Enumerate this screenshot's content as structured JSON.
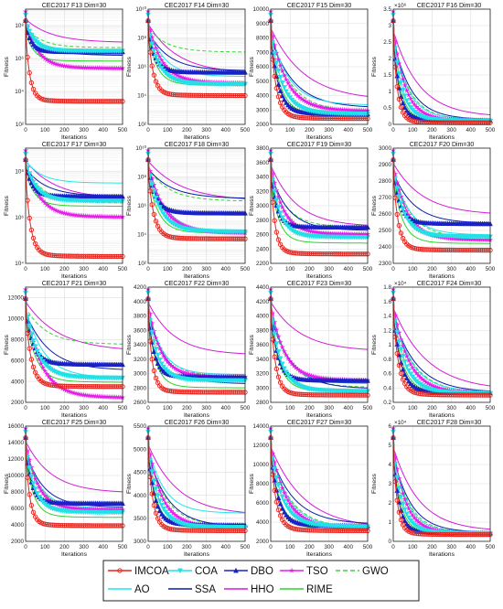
{
  "figure": {
    "ylabel_common": "Fitness",
    "xlabel_common": "Iterations",
    "x_ticks": [
      0,
      100,
      200,
      300,
      400,
      500
    ],
    "legend_position": "bottom"
  },
  "series_styles": [
    {
      "name": "IMCOA",
      "color": "#e8221c",
      "line": "solid",
      "marker": "circle"
    },
    {
      "name": "COA",
      "color": "#22e0e6",
      "line": "solid",
      "marker": "triangle-down"
    },
    {
      "name": "DBO",
      "color": "#1b22c4",
      "line": "solid",
      "marker": "triangle-up"
    },
    {
      "name": "TSO",
      "color": "#e61de8",
      "line": "solid",
      "marker": "star"
    },
    {
      "name": "GWO",
      "color": "#3ad43a",
      "line": "dashed",
      "marker": "none"
    },
    {
      "name": "AO",
      "color": "#22e6ea",
      "line": "solid",
      "marker": "none"
    },
    {
      "name": "SSA",
      "color": "#0a1fa6",
      "line": "solid",
      "marker": "none"
    },
    {
      "name": "HHO",
      "color": "#d21dd8",
      "line": "solid",
      "marker": "none"
    },
    {
      "name": "RIME",
      "color": "#2ad42a",
      "line": "solid",
      "marker": "none"
    }
  ],
  "chart_data": [
    {
      "type": "line",
      "title": "CEC2017 F13 Dim=30",
      "xlabel": "Iterations",
      "ylabel": "Fitness",
      "xlim": [
        0,
        500
      ],
      "yscale": "log",
      "ylim": [
        100,
        1000000000.0
      ],
      "yticks": [
        {
          "v": 100,
          "t": "10²"
        },
        {
          "v": 10000,
          "t": "10⁴"
        },
        {
          "v": 1000000,
          "t": "10⁶"
        },
        {
          "v": 100000000,
          "t": "10⁸"
        }
      ],
      "final": {
        "IMCOA": 2500,
        "COA": 2800000,
        "DBO": 2500000,
        "TSO": 250000,
        "GWO": 4500000,
        "AO": 1800000,
        "SSA": 1500000,
        "HHO": 9000000,
        "RIME": 700000
      }
    },
    {
      "type": "line",
      "title": "CEC2017 F14 Dim=30",
      "xlabel": "Iterations",
      "ylabel": "Fitness",
      "xlim": [
        0,
        500
      ],
      "yscale": "log",
      "ylim": [
        100,
        10000000000.0
      ],
      "yticks": [
        {
          "v": 100,
          "t": "10²"
        },
        {
          "v": 10000,
          "t": "10⁴"
        },
        {
          "v": 1000000,
          "t": "10⁶"
        },
        {
          "v": 100000000,
          "t": "10⁸"
        },
        {
          "v": 10000000000,
          "t": "10¹⁰"
        }
      ],
      "final": {
        "IMCOA": 10000,
        "COA": 60000,
        "DBO": 400000,
        "TSO": 70000,
        "GWO": 10000000,
        "AO": 200000,
        "SSA": 500000,
        "HHO": 300000,
        "RIME": 50000
      }
    },
    {
      "type": "line",
      "title": "CEC2017 F15 Dim=30",
      "xlabel": "Iterations",
      "ylabel": "Fitness",
      "xlim": [
        0,
        500
      ],
      "yscale": "linear",
      "ylim": [
        2000,
        10000
      ],
      "yticks": [
        2000,
        3000,
        4000,
        5000,
        6000,
        7000,
        8000,
        9000,
        10000
      ],
      "final": {
        "IMCOA": 2400,
        "COA": 2700,
        "DBO": 2700,
        "TSO": 2900,
        "GWO": 2800,
        "AO": 3300,
        "SSA": 3100,
        "HHO": 3600,
        "RIME": 2600
      }
    },
    {
      "type": "line",
      "title": "CEC2017 F16 Dim=30",
      "xlabel": "Iterations",
      "ylabel": "Fitness",
      "xlim": [
        0,
        500
      ],
      "yscale": "linear",
      "ylim": [
        0,
        3.5
      ],
      "exponent": "×10⁶",
      "yticks": [
        0,
        0.5,
        1,
        1.5,
        2,
        2.5,
        3,
        3.5
      ],
      "final": {
        "IMCOA": 0.05,
        "COA": 0.1,
        "DBO": 0.12,
        "TSO": 0.1,
        "GWO": 0.12,
        "AO": 0.15,
        "SSA": 0.13,
        "HHO": 0.2,
        "RIME": 0.08
      }
    },
    {
      "type": "line",
      "title": "CEC2017 F17 Dim=30",
      "xlabel": "Iterations",
      "ylabel": "Fitness",
      "xlim": [
        0,
        500
      ],
      "yscale": "log",
      "ylim": [
        10000,
        1000000000.0
      ],
      "yticks": [
        {
          "v": 10000,
          "t": "10⁴"
        },
        {
          "v": 1000000,
          "t": "10⁶"
        },
        {
          "v": 100000000,
          "t": "10⁸"
        }
      ],
      "final": {
        "IMCOA": 20000,
        "COA": 5000000,
        "DBO": 8000000,
        "TSO": 1000000,
        "GWO": 4000000,
        "AO": 30000000,
        "SSA": 8000000,
        "HHO": 6000000,
        "RIME": 3000000
      }
    },
    {
      "type": "line",
      "title": "CEC2017 F18 Dim=30",
      "xlabel": "Iterations",
      "ylabel": "Fitness",
      "xlim": [
        0,
        500
      ],
      "yscale": "log",
      "ylim": [
        100,
        10000000000.0
      ],
      "yticks": [
        {
          "v": 100,
          "t": "10²"
        },
        {
          "v": 10000,
          "t": "10⁴"
        },
        {
          "v": 1000000,
          "t": "10⁶"
        },
        {
          "v": 100000000,
          "t": "10⁸"
        },
        {
          "v": 10000000000,
          "t": "10¹⁰"
        }
      ],
      "final": {
        "IMCOA": 5000,
        "COA": 15000,
        "DBO": 300000,
        "TSO": 12000,
        "GWO": 2000000,
        "AO": 12000,
        "SSA": 3000000,
        "HHO": 2000000,
        "RIME": 12000
      }
    },
    {
      "type": "line",
      "title": "CEC2017 F19 Dim=30",
      "xlabel": "Iterations",
      "ylabel": "Fitness",
      "xlim": [
        0,
        500
      ],
      "yscale": "linear",
      "ylim": [
        2200,
        3800
      ],
      "yticks": [
        2200,
        2400,
        2600,
        2800,
        3000,
        3200,
        3400,
        3600,
        3800
      ],
      "final": {
        "IMCOA": 2330,
        "COA": 2560,
        "DBO": 2700,
        "TSO": 2600,
        "GWO": 2700,
        "AO": 2580,
        "SSA": 2650,
        "HHO": 2700,
        "RIME": 2480
      }
    },
    {
      "type": "line",
      "title": "CEC2017 F20 Dim=30",
      "xlabel": "Iterations",
      "ylabel": "Fitness",
      "xlim": [
        0,
        500
      ],
      "yscale": "linear",
      "ylim": [
        2300,
        3000
      ],
      "yticks": [
        2300,
        2400,
        2500,
        2600,
        2700,
        2800,
        2900,
        3000
      ],
      "final": {
        "IMCOA": 2380,
        "COA": 2460,
        "DBO": 2540,
        "TSO": 2440,
        "GWO": 2450,
        "AO": 2470,
        "SSA": 2540,
        "HHO": 2590,
        "RIME": 2420
      }
    },
    {
      "type": "line",
      "title": "CEC2017 F21 Dim=30",
      "xlabel": "Iterations",
      "ylabel": "Fitness",
      "xlim": [
        0,
        500
      ],
      "yscale": "linear",
      "ylim": [
        2000,
        13000
      ],
      "yticks": [
        2000,
        4000,
        6000,
        8000,
        10000,
        12000
      ],
      "final": {
        "IMCOA": 3500,
        "COA": 4300,
        "DBO": 5600,
        "TSO": 2400,
        "GWO": 7500,
        "AO": 4300,
        "SSA": 5000,
        "HHO": 6800,
        "RIME": 3900
      }
    },
    {
      "type": "line",
      "title": "CEC2017 F22 Dim=30",
      "xlabel": "Iterations",
      "ylabel": "Fitness",
      "xlim": [
        0,
        500
      ],
      "yscale": "linear",
      "ylim": [
        2600,
        4200
      ],
      "yticks": [
        2600,
        2800,
        3000,
        3200,
        3400,
        3600,
        3800,
        4000,
        4200
      ],
      "final": {
        "IMCOA": 2740,
        "COA": 2900,
        "DBO": 2950,
        "TSO": 2950,
        "GWO": 2950,
        "AO": 2980,
        "SSA": 2850,
        "HHO": 3250,
        "RIME": 2800
      }
    },
    {
      "type": "line",
      "title": "CEC2017 F23 Dim=30",
      "xlabel": "Iterations",
      "ylabel": "Fitness",
      "xlim": [
        0,
        500
      ],
      "yscale": "linear",
      "ylim": [
        2800,
        4400
      ],
      "yticks": [
        2800,
        3000,
        3200,
        3400,
        3600,
        3800,
        4000,
        4200,
        4400
      ],
      "final": {
        "IMCOA": 2900,
        "COA": 2950,
        "DBO": 3100,
        "TSO": 3100,
        "GWO": 3000,
        "AO": 3050,
        "SSA": 2980,
        "HHO": 3500,
        "RIME": 2950
      }
    },
    {
      "type": "line",
      "title": "CEC2017 F24 Dim=30",
      "xlabel": "Iterations",
      "ylabel": "Fitness",
      "xlim": [
        0,
        500
      ],
      "yscale": "linear",
      "ylim": [
        0.2,
        1.8
      ],
      "exponent": "×10⁴",
      "yticks": [
        0.2,
        0.4,
        0.6,
        0.8,
        1,
        1.2,
        1.4,
        1.6,
        1.8
      ],
      "final": {
        "IMCOA": 0.3,
        "COA": 0.32,
        "DBO": 0.33,
        "TSO": 0.32,
        "GWO": 0.32,
        "AO": 0.34,
        "SSA": 0.33,
        "HHO": 0.35,
        "RIME": 0.31
      }
    },
    {
      "type": "line",
      "title": "CEC2017 F25 Dim=30",
      "xlabel": "Iterations",
      "ylabel": "Fitness",
      "xlim": [
        0,
        500
      ],
      "yscale": "linear",
      "ylim": [
        2000,
        16000
      ],
      "yticks": [
        2000,
        4000,
        6000,
        8000,
        10000,
        12000,
        14000,
        16000
      ],
      "final": {
        "IMCOA": 3900,
        "COA": 5500,
        "DBO": 6600,
        "TSO": 5800,
        "GWO": 5500,
        "AO": 6000,
        "SSA": 6100,
        "HHO": 7800,
        "RIME": 4900
      }
    },
    {
      "type": "line",
      "title": "CEC2017 F26 Dim=30",
      "xlabel": "Iterations",
      "ylabel": "Fitness",
      "xlim": [
        0,
        500
      ],
      "yscale": "linear",
      "ylim": [
        3000,
        5500
      ],
      "yticks": [
        3000,
        3500,
        4000,
        4500,
        5000,
        5500
      ],
      "final": {
        "IMCOA": 3230,
        "COA": 3300,
        "DBO": 3350,
        "TSO": 3300,
        "GWO": 3320,
        "AO": 3600,
        "SSA": 3300,
        "HHO": 3550,
        "RIME": 3280
      }
    },
    {
      "type": "line",
      "title": "CEC2017 F27 Dim=30",
      "xlabel": "Iterations",
      "ylabel": "Fitness",
      "xlim": [
        0,
        500
      ],
      "yscale": "linear",
      "ylim": [
        2000,
        14000
      ],
      "yticks": [
        2000,
        4000,
        6000,
        8000,
        10000,
        12000,
        14000
      ],
      "final": {
        "IMCOA": 3100,
        "COA": 3500,
        "DBO": 3600,
        "TSO": 3300,
        "GWO": 3300,
        "AO": 3400,
        "SSA": 3700,
        "HHO": 3200,
        "RIME": 3200
      }
    },
    {
      "type": "line",
      "title": "CEC2017 F28 Dim=30",
      "xlabel": "Iterations",
      "ylabel": "Fitness",
      "xlim": [
        0,
        500
      ],
      "yscale": "linear",
      "ylim": [
        0,
        6
      ],
      "exponent": "×10⁴",
      "yticks": [
        0,
        1,
        2,
        3,
        4,
        5,
        6
      ],
      "final": {
        "IMCOA": 0.35,
        "COA": 0.4,
        "DBO": 0.42,
        "TSO": 0.4,
        "GWO": 0.42,
        "AO": 0.45,
        "SSA": 0.43,
        "HHO": 0.48,
        "RIME": 0.38
      }
    }
  ]
}
